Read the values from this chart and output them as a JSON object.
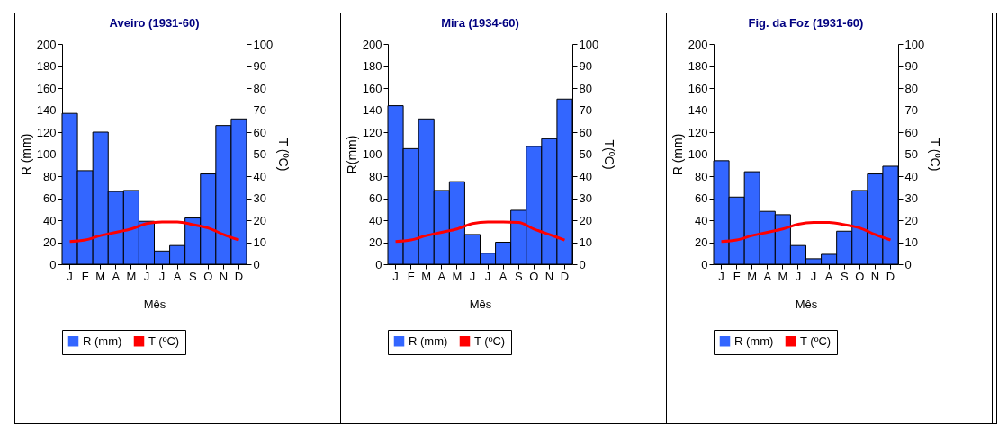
{
  "chart_data": [
    {
      "type": "bar",
      "title": "Aveiro (1931-60)",
      "xlabel": "Mês",
      "ylabel": "R (mm)",
      "y2label": "T (ºC)",
      "categories": [
        "J",
        "F",
        "M",
        "A",
        "M",
        "J",
        "J",
        "A",
        "S",
        "O",
        "N",
        "D"
      ],
      "series": [
        {
          "name": "R (mm)",
          "color": "#3366ff",
          "values": [
            137,
            85,
            120,
            66,
            67,
            39,
            12,
            17,
            42,
            82,
            126,
            132
          ]
        },
        {
          "name": "T (ºC)",
          "type": "line",
          "axis": "y2",
          "color": "#ff0000",
          "values": [
            10.3,
            11,
            13,
            14.5,
            16,
            18.5,
            19.2,
            19.2,
            18,
            16.5,
            13.5,
            11
          ]
        }
      ],
      "ylim": [
        0,
        200
      ],
      "yticks": [
        0,
        20,
        40,
        60,
        80,
        100,
        120,
        140,
        160,
        180,
        200
      ],
      "y2lim": [
        0,
        100
      ],
      "y2ticks": [
        0,
        10,
        20,
        30,
        40,
        50,
        60,
        70,
        80,
        90,
        100
      ],
      "legend": "bottom",
      "line_style": "solid"
    },
    {
      "type": "bar",
      "title": "Mira (1934-60)",
      "xlabel": "Mês",
      "ylabel": "R(mm)",
      "y2label": "T(ºC)",
      "categories": [
        "J",
        "F",
        "M",
        "A",
        "M",
        "J",
        "J",
        "A",
        "S",
        "O",
        "N",
        "D"
      ],
      "series": [
        {
          "name": "R (mm)",
          "color": "#3366ff",
          "values": [
            144,
            105,
            132,
            67,
            75,
            27,
            10,
            20,
            49,
            107,
            114,
            150
          ]
        },
        {
          "name": "T (ºC)",
          "type": "line",
          "axis": "y2",
          "color": "#ff0000",
          "values": [
            10.3,
            11,
            13,
            14.5,
            16,
            18.5,
            19.2,
            19.2,
            19,
            16,
            13.5,
            11
          ]
        }
      ],
      "ylim": [
        0,
        200
      ],
      "yticks": [
        0,
        20,
        40,
        60,
        80,
        100,
        120,
        140,
        160,
        180,
        200
      ],
      "y2lim": [
        0,
        100
      ],
      "y2ticks": [
        0,
        10,
        20,
        30,
        40,
        50,
        60,
        70,
        80,
        90,
        100
      ],
      "legend": "bottom",
      "line_style": "solid"
    },
    {
      "type": "bar",
      "title": "Fig. da Foz (1931-60)",
      "xlabel": "Mês",
      "ylabel": "R (mm)",
      "y2label": "T (ºC)",
      "categories": [
        "J",
        "F",
        "M",
        "A",
        "M",
        "J",
        "J",
        "A",
        "S",
        "O",
        "N",
        "D"
      ],
      "series": [
        {
          "name": "R (mm)",
          "color": "#3366ff",
          "values": [
            94,
            61,
            84,
            48,
            45,
            17,
            5,
            9,
            30,
            67,
            82,
            89
          ]
        },
        {
          "name": "T (ºC)",
          "type": "line",
          "axis": "y2",
          "color": "#ff0000",
          "values": [
            10.3,
            11,
            13,
            14.5,
            16,
            18.2,
            19,
            19,
            18,
            16.5,
            13.5,
            11
          ]
        }
      ],
      "ylim": [
        0,
        200
      ],
      "yticks": [
        0,
        20,
        40,
        60,
        80,
        100,
        120,
        140,
        160,
        180,
        200
      ],
      "y2lim": [
        0,
        100
      ],
      "y2ticks": [
        0,
        10,
        20,
        30,
        40,
        50,
        60,
        70,
        80,
        90,
        100
      ],
      "legend": "bottom",
      "line_style": "solid"
    }
  ]
}
